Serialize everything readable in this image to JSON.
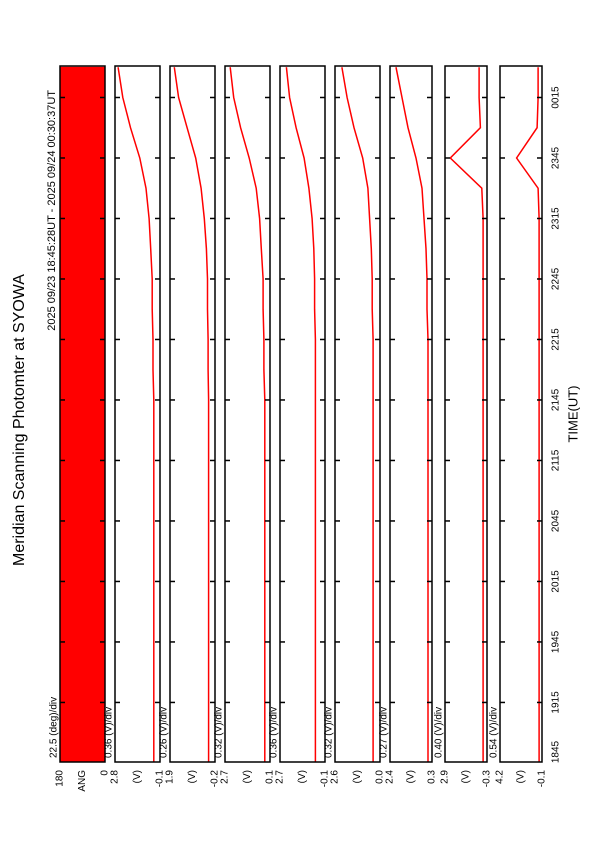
{
  "chart_data": {
    "type": "line",
    "title": "Meridian Scanning Photomter at SYOWA",
    "subtitle": "2025 09/23 18:45:28UT - 2025 09/24 00:30:37UT",
    "x_label": "TIME(UT)",
    "xlim": [
      18.7578,
      24.5103
    ],
    "xticks": [
      {
        "value": 18.75,
        "label": "1845"
      },
      {
        "value": 19.25,
        "label": "1915"
      },
      {
        "value": 19.75,
        "label": "1945"
      },
      {
        "value": 20.25,
        "label": "2015"
      },
      {
        "value": 20.75,
        "label": "2045"
      },
      {
        "value": 21.25,
        "label": "2115"
      },
      {
        "value": 21.75,
        "label": "2145"
      },
      {
        "value": 22.25,
        "label": "2215"
      },
      {
        "value": 22.75,
        "label": "2245"
      },
      {
        "value": 23.25,
        "label": "2315"
      },
      {
        "value": 23.75,
        "label": "2345"
      },
      {
        "value": 24.25,
        "label": "0015"
      }
    ],
    "x": [
      18.76,
      19,
      19.25,
      19.5,
      19.75,
      20,
      20.25,
      20.5,
      20.75,
      21,
      21.25,
      21.5,
      21.75,
      22,
      22.25,
      22.5,
      22.75,
      23,
      23.25,
      23.5,
      23.75,
      24,
      24.25,
      24.5
    ],
    "color": "#ff0000",
    "panels": [
      {
        "type": "area",
        "ylabel": "ANG",
        "scale_label": "22.5 (deg)/div",
        "ylim": [
          0,
          180
        ],
        "yticks": [
          0,
          180
        ],
        "values": [
          180,
          180,
          180,
          180,
          180,
          180,
          180,
          180,
          180,
          180,
          180,
          180,
          180,
          180,
          180,
          180,
          180,
          180,
          180,
          180,
          180,
          180,
          180,
          180
        ]
      },
      {
        "type": "line",
        "ylabel": "(V)",
        "scale_label": "0.36 (V)/div",
        "ylim": [
          -0.1,
          2.8
        ],
        "yticks": [
          -0.1,
          2.8
        ],
        "values": [
          0.3,
          0.3,
          0.3,
          0.3,
          0.3,
          0.3,
          0.3,
          0.3,
          0.3,
          0.3,
          0.3,
          0.3,
          0.3,
          0.35,
          0.35,
          0.4,
          0.4,
          0.5,
          0.6,
          0.8,
          1.2,
          1.8,
          2.3,
          2.6
        ]
      },
      {
        "type": "line",
        "ylabel": "(V)",
        "scale_label": "0.26 (V)/div",
        "ylim": [
          -0.2,
          1.9
        ],
        "yticks": [
          -0.2,
          1.9
        ],
        "values": [
          0.1,
          0.1,
          0.1,
          0.1,
          0.1,
          0.1,
          0.1,
          0.1,
          0.1,
          0.1,
          0.1,
          0.1,
          0.1,
          0.12,
          0.12,
          0.15,
          0.15,
          0.2,
          0.3,
          0.45,
          0.7,
          1.1,
          1.5,
          1.7
        ]
      },
      {
        "type": "line",
        "ylabel": "(V)",
        "scale_label": "0.32 (V)/div",
        "ylim": [
          0.1,
          2.7
        ],
        "yticks": [
          0.1,
          2.7
        ],
        "values": [
          0.4,
          0.4,
          0.4,
          0.4,
          0.4,
          0.4,
          0.4,
          0.4,
          0.4,
          0.4,
          0.4,
          0.4,
          0.4,
          0.45,
          0.45,
          0.5,
          0.5,
          0.6,
          0.7,
          0.9,
          1.3,
          1.8,
          2.2,
          2.4
        ]
      },
      {
        "type": "line",
        "ylabel": "(V)",
        "scale_label": "0.36 (V)/div",
        "ylim": [
          -0.1,
          2.7
        ],
        "yticks": [
          -0.1,
          2.7
        ],
        "values": [
          0.5,
          0.5,
          0.5,
          0.5,
          0.5,
          0.5,
          0.5,
          0.5,
          0.5,
          0.5,
          0.5,
          0.5,
          0.5,
          0.5,
          0.5,
          0.55,
          0.55,
          0.6,
          0.7,
          0.9,
          1.2,
          1.7,
          2.1,
          2.3
        ]
      },
      {
        "type": "line",
        "ylabel": "(V)",
        "scale_label": "0.32 (V)/div",
        "ylim": [
          0,
          2.6
        ],
        "yticks": [
          {
            "value": 0,
            "label": "0.0"
          },
          2.6
        ],
        "values": [
          0.4,
          0.4,
          0.4,
          0.4,
          0.4,
          0.4,
          0.4,
          0.4,
          0.4,
          0.4,
          0.4,
          0.4,
          0.4,
          0.4,
          0.4,
          0.45,
          0.45,
          0.5,
          0.6,
          0.7,
          1.0,
          1.5,
          1.9,
          2.2
        ]
      },
      {
        "type": "line",
        "ylabel": "(V)",
        "scale_label": "0.27 (V)/div",
        "ylim": [
          0.3,
          2.4
        ],
        "yticks": [
          0.3,
          2.4
        ],
        "values": [
          0.5,
          0.5,
          0.5,
          0.5,
          0.5,
          0.5,
          0.5,
          0.5,
          0.5,
          0.5,
          0.5,
          0.5,
          0.5,
          0.5,
          0.5,
          0.55,
          0.55,
          0.6,
          0.7,
          0.8,
          1.1,
          1.5,
          1.8,
          2.1
        ]
      },
      {
        "type": "line",
        "ylabel": "(V)",
        "scale_label": "0.40 (V)/div",
        "ylim": [
          -0.3,
          2.9
        ],
        "yticks": [
          -0.3,
          2.9
        ],
        "values": [
          0,
          0,
          0,
          0,
          0,
          0,
          0,
          0,
          0,
          0,
          0,
          0,
          0,
          0,
          0,
          0,
          0,
          0,
          0,
          0.1,
          2.5,
          0.2,
          0.3,
          0.3
        ]
      },
      {
        "type": "line",
        "ylabel": "(V)",
        "scale_label": "0.54 (V)/div",
        "ylim": [
          -0.1,
          4.2
        ],
        "yticks": [
          -0.1,
          4.2
        ],
        "values": [
          0.2,
          0.2,
          0.2,
          0.2,
          0.2,
          0.2,
          0.2,
          0.2,
          0.2,
          0.2,
          0.2,
          0.2,
          0.2,
          0.2,
          0.2,
          0.2,
          0.2,
          0.2,
          0.2,
          0.3,
          2.5,
          0.4,
          0.3,
          0.3
        ]
      }
    ]
  }
}
